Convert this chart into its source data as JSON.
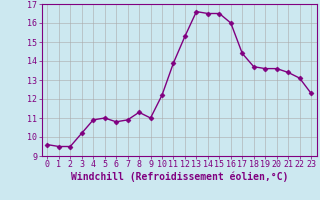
{
  "x": [
    0,
    1,
    2,
    3,
    4,
    5,
    6,
    7,
    8,
    9,
    10,
    11,
    12,
    13,
    14,
    15,
    16,
    17,
    18,
    19,
    20,
    21,
    22,
    23
  ],
  "y": [
    9.6,
    9.5,
    9.5,
    10.2,
    10.9,
    11.0,
    10.8,
    10.9,
    11.3,
    11.0,
    12.2,
    13.9,
    15.3,
    16.6,
    16.5,
    16.5,
    16.0,
    14.4,
    13.7,
    13.6,
    13.6,
    13.4,
    13.1,
    12.3
  ],
  "line_color": "#800080",
  "marker": "D",
  "marker_size": 2.5,
  "xlabel": "Windchill (Refroidissement éolien,°C)",
  "ylim": [
    9,
    17
  ],
  "xlim": [
    -0.5,
    23.5
  ],
  "yticks": [
    9,
    10,
    11,
    12,
    13,
    14,
    15,
    16,
    17
  ],
  "xticks": [
    0,
    1,
    2,
    3,
    4,
    5,
    6,
    7,
    8,
    9,
    10,
    11,
    12,
    13,
    14,
    15,
    16,
    17,
    18,
    19,
    20,
    21,
    22,
    23
  ],
  "bg_color": "#cce8f0",
  "grid_color": "#aaaaaa",
  "font_color": "#800080",
  "tick_fontsize": 6.0,
  "xlabel_fontsize": 7.0,
  "linewidth": 1.0
}
